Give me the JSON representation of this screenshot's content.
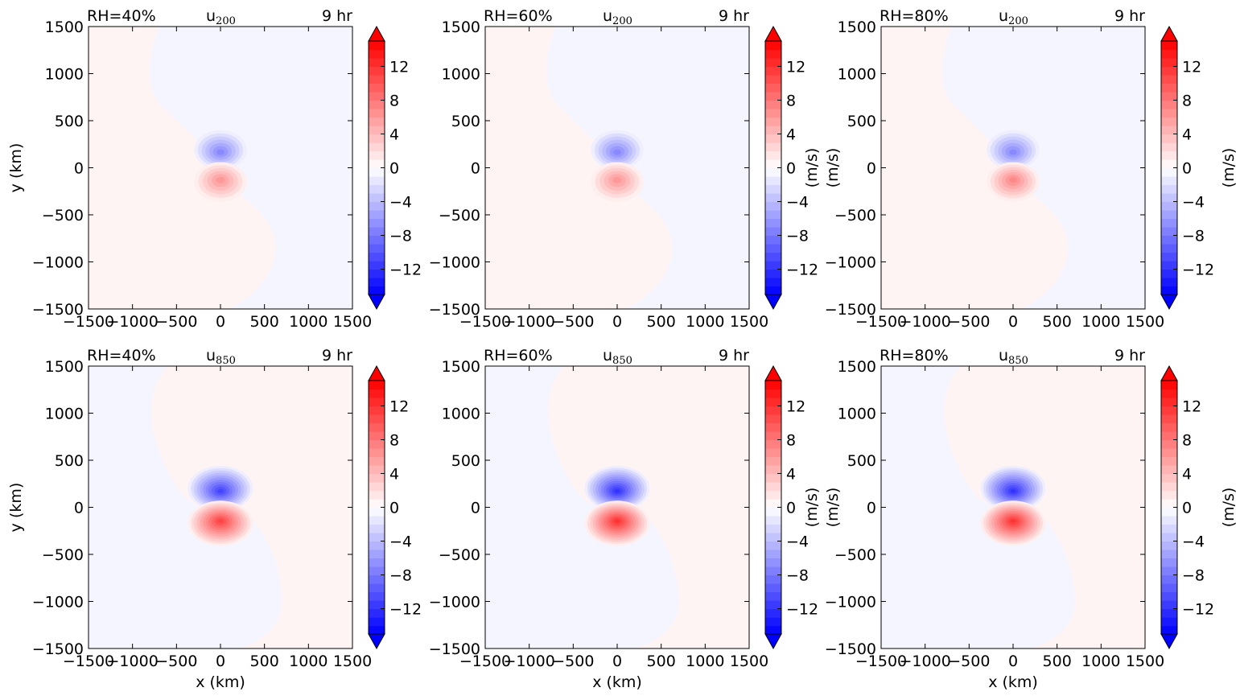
{
  "figure": {
    "colorbar_label": "(m/s)",
    "time_label": "9 hr"
  },
  "chart_data": [
    {
      "type": "heatmap",
      "panel": "top-1",
      "rh_label": "RH=40%",
      "var_main": "u",
      "var_sub": "200",
      "time": "9 hr",
      "xlabel": "",
      "ylabel": "y (km)",
      "cbar_label": "",
      "xlim": [
        -1500,
        1500
      ],
      "ylim": [
        -1500,
        1500
      ],
      "xticks": [
        -1500,
        -1000,
        -500,
        0,
        500,
        1000,
        1500
      ],
      "yticks": [
        -1500,
        -1000,
        -500,
        0,
        500,
        1000,
        1500
      ],
      "clim": [
        -15,
        15
      ],
      "cbar_ticks": [
        -12,
        -8,
        -4,
        0,
        4,
        8,
        12
      ],
      "center_dipole": {
        "north_min": -7,
        "south_max": 6
      },
      "background": "weak"
    },
    {
      "type": "heatmap",
      "panel": "top-2",
      "rh_label": "RH=60%",
      "var_main": "u",
      "var_sub": "200",
      "time": "9 hr",
      "xlabel": "",
      "ylabel": "",
      "cbar_label": "(m/s)",
      "xlim": [
        -1500,
        1500
      ],
      "ylim": [
        -1500,
        1500
      ],
      "xticks": [
        -1500,
        -1000,
        -500,
        0,
        500,
        1000,
        1500
      ],
      "yticks": [
        -1500,
        -1000,
        -500,
        0,
        500,
        1000,
        1500
      ],
      "clim": [
        -15,
        15
      ],
      "cbar_ticks": [
        -12,
        -8,
        -4,
        0,
        4,
        8,
        12
      ],
      "center_dipole": {
        "north_min": -7,
        "south_max": 6
      },
      "background": "weak"
    },
    {
      "type": "heatmap",
      "panel": "top-3",
      "rh_label": "RH=80%",
      "var_main": "u",
      "var_sub": "200",
      "time": "9 hr",
      "xlabel": "",
      "ylabel": "(m/s)",
      "cbar_label": "(m/s)",
      "xlim": [
        -1500,
        1500
      ],
      "ylim": [
        -1500,
        1500
      ],
      "xticks": [
        -1500,
        -1000,
        -500,
        0,
        500,
        1000,
        1500
      ],
      "yticks": [
        -1500,
        -1000,
        -500,
        0,
        500,
        1000,
        1500
      ],
      "clim": [
        -15,
        15
      ],
      "cbar_ticks": [
        -12,
        -8,
        -4,
        0,
        4,
        8,
        12
      ],
      "center_dipole": {
        "north_min": -7,
        "south_max": 7
      },
      "background": "weak"
    },
    {
      "type": "heatmap",
      "panel": "bottom-1",
      "rh_label": "RH=40%",
      "var_main": "u",
      "var_sub": "850",
      "time": "9 hr",
      "xlabel": "x (km)",
      "ylabel": "y (km)",
      "cbar_label": "",
      "xlim": [
        -1500,
        1500
      ],
      "ylim": [
        -1500,
        1500
      ],
      "xticks": [
        -1500,
        -1000,
        -500,
        0,
        500,
        1000,
        1500
      ],
      "yticks": [
        -1500,
        -1000,
        -500,
        0,
        500,
        1000,
        1500
      ],
      "clim": [
        -15,
        15
      ],
      "cbar_ticks": [
        -12,
        -8,
        -4,
        0,
        4,
        8,
        12
      ],
      "center_dipole": {
        "north_min": -11,
        "south_max": 11
      },
      "background": "weak"
    },
    {
      "type": "heatmap",
      "panel": "bottom-2",
      "rh_label": "RH=60%",
      "var_main": "u",
      "var_sub": "850",
      "time": "9 hr",
      "xlabel": "x (km)",
      "ylabel": "",
      "cbar_label": "(m/s)",
      "xlim": [
        -1500,
        1500
      ],
      "ylim": [
        -1500,
        1500
      ],
      "xticks": [
        -1500,
        -1000,
        -500,
        0,
        500,
        1000,
        1500
      ],
      "yticks": [
        -1500,
        -1000,
        -500,
        0,
        500,
        1000,
        1500
      ],
      "clim": [
        -15,
        15
      ],
      "cbar_ticks": [
        -12,
        -8,
        -4,
        0,
        4,
        8,
        12
      ],
      "center_dipole": {
        "north_min": -12,
        "south_max": 12
      },
      "background": "weak"
    },
    {
      "type": "heatmap",
      "panel": "bottom-3",
      "rh_label": "RH=80%",
      "var_main": "u",
      "var_sub": "850",
      "time": "9 hr",
      "xlabel": "x (km)",
      "ylabel": "(m/s)",
      "cbar_label": "(m/s)",
      "xlim": [
        -1500,
        1500
      ],
      "ylim": [
        -1500,
        1500
      ],
      "xticks": [
        -1500,
        -1000,
        -500,
        0,
        500,
        1000,
        1500
      ],
      "yticks": [
        -1500,
        -1000,
        -500,
        0,
        500,
        1000,
        1500
      ],
      "clim": [
        -15,
        15
      ],
      "cbar_ticks": [
        -12,
        -8,
        -4,
        0,
        4,
        8,
        12
      ],
      "center_dipole": {
        "north_min": -12,
        "south_max": 12
      },
      "background": "weak"
    }
  ],
  "colors": {
    "positive": "#ff0000",
    "negative": "#0000ff",
    "neutral": "#ffffff",
    "weak_positive": "#fff4f4",
    "weak_negative": "#f5f5ff"
  }
}
